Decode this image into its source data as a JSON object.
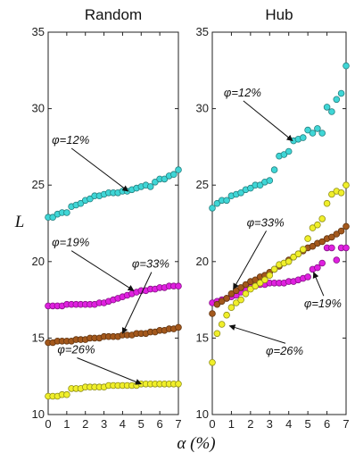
{
  "chart_data": [
    {
      "type": "scatter",
      "title": "Random",
      "xlabel": "α (%)",
      "ylabel": "L",
      "xlim": [
        0,
        7
      ],
      "ylim": [
        10,
        35
      ],
      "xticks": [
        "0",
        "1",
        "2",
        "3",
        "4",
        "5",
        "6",
        "7"
      ],
      "yticks": [
        "10",
        "15",
        "20",
        "25",
        "30",
        "35"
      ],
      "series": [
        {
          "name": "φ=12%",
          "color": "#3fd6d6",
          "x": [
            0.0,
            0.25,
            0.5,
            0.75,
            1.0,
            1.25,
            1.5,
            1.75,
            2.0,
            2.25,
            2.5,
            2.75,
            3.0,
            3.25,
            3.5,
            3.75,
            4.0,
            4.25,
            4.5,
            4.75,
            5.0,
            5.25,
            5.5,
            5.75,
            6.0,
            6.25,
            6.5,
            6.75,
            7.0
          ],
          "y": [
            22.9,
            22.9,
            23.1,
            23.2,
            23.2,
            23.6,
            23.7,
            23.8,
            24.0,
            24.1,
            24.3,
            24.3,
            24.4,
            24.5,
            24.5,
            24.5,
            24.6,
            24.6,
            24.7,
            24.8,
            24.9,
            25.0,
            24.9,
            25.2,
            25.4,
            25.4,
            25.6,
            25.7,
            26.0
          ]
        },
        {
          "name": "φ=19%",
          "color": "#e020e0",
          "x": [
            0.0,
            0.25,
            0.5,
            0.75,
            1.0,
            1.25,
            1.5,
            1.75,
            2.0,
            2.25,
            2.5,
            2.75,
            3.0,
            3.25,
            3.5,
            3.75,
            4.0,
            4.25,
            4.5,
            4.75,
            5.0,
            5.25,
            5.5,
            5.75,
            6.0,
            6.25,
            6.5,
            6.75,
            7.0
          ],
          "y": [
            17.1,
            17.1,
            17.1,
            17.1,
            17.2,
            17.2,
            17.2,
            17.2,
            17.2,
            17.2,
            17.2,
            17.3,
            17.3,
            17.4,
            17.5,
            17.6,
            17.7,
            17.8,
            17.9,
            18.0,
            18.1,
            18.1,
            18.2,
            18.2,
            18.3,
            18.3,
            18.4,
            18.4,
            18.4
          ]
        },
        {
          "name": "φ=33%",
          "color": "#a3581c",
          "x": [
            0.0,
            0.25,
            0.5,
            0.75,
            1.0,
            1.25,
            1.5,
            1.75,
            2.0,
            2.25,
            2.5,
            2.75,
            3.0,
            3.25,
            3.5,
            3.75,
            4.0,
            4.25,
            4.5,
            4.75,
            5.0,
            5.25,
            5.5,
            5.75,
            6.0,
            6.25,
            6.5,
            6.75,
            7.0
          ],
          "y": [
            14.7,
            14.7,
            14.8,
            14.8,
            14.8,
            14.8,
            14.9,
            14.9,
            14.9,
            15.0,
            15.0,
            15.0,
            15.1,
            15.1,
            15.1,
            15.1,
            15.2,
            15.2,
            15.2,
            15.3,
            15.3,
            15.3,
            15.4,
            15.4,
            15.5,
            15.5,
            15.6,
            15.6,
            15.7
          ]
        },
        {
          "name": "φ=26%",
          "color": "#f0ef2a",
          "x": [
            0.0,
            0.25,
            0.5,
            0.75,
            1.0,
            1.25,
            1.5,
            1.75,
            2.0,
            2.25,
            2.5,
            2.75,
            3.0,
            3.25,
            3.5,
            3.75,
            4.0,
            4.25,
            4.5,
            4.75,
            5.0,
            5.25,
            5.5,
            5.75,
            6.0,
            6.25,
            6.5,
            6.75,
            7.0
          ],
          "y": [
            11.2,
            11.2,
            11.2,
            11.3,
            11.3,
            11.7,
            11.7,
            11.7,
            11.8,
            11.8,
            11.8,
            11.8,
            11.8,
            11.9,
            11.9,
            11.9,
            11.9,
            11.9,
            11.9,
            11.9,
            12.0,
            12.0,
            12.0,
            12.0,
            12.0,
            12.0,
            12.0,
            12.0,
            12.0
          ]
        }
      ],
      "annotations": [
        {
          "text": "φ=12%",
          "x": 0.2,
          "y": 27.7,
          "arrow_to": [
            4.3,
            24.6
          ]
        },
        {
          "text": "φ=19%",
          "x": 0.2,
          "y": 21.0,
          "arrow_to": [
            4.6,
            18.1
          ]
        },
        {
          "text": "φ=33%",
          "x": 4.5,
          "y": 19.6,
          "arrow_to": [
            4.0,
            15.3
          ]
        },
        {
          "text": "φ=26%",
          "x": 0.5,
          "y": 14.0,
          "arrow_to": [
            5.0,
            12.0
          ]
        }
      ]
    },
    {
      "type": "scatter",
      "title": "Hub",
      "xlabel": "α (%)",
      "xlim": [
        0,
        7
      ],
      "ylim": [
        10,
        35
      ],
      "xticks": [
        "0",
        "1",
        "2",
        "3",
        "4",
        "5",
        "6",
        "7"
      ],
      "yticks": [
        "10",
        "15",
        "20",
        "25",
        "30",
        "35"
      ],
      "series": [
        {
          "name": "φ=12%",
          "color": "#3fd6d6",
          "x": [
            0.0,
            0.25,
            0.5,
            0.75,
            1.0,
            1.25,
            1.5,
            1.75,
            2.0,
            2.25,
            2.5,
            2.75,
            3.0,
            3.25,
            3.5,
            3.75,
            4.0,
            4.25,
            4.5,
            4.75,
            5.0,
            5.25,
            5.5,
            5.75,
            6.0,
            6.25,
            6.5,
            6.75,
            7.0
          ],
          "y": [
            23.5,
            23.8,
            24.0,
            24.0,
            24.3,
            24.4,
            24.5,
            24.7,
            24.8,
            25.0,
            25.0,
            25.2,
            25.3,
            26.0,
            26.9,
            27.0,
            27.2,
            27.9,
            28.0,
            28.1,
            28.6,
            28.4,
            28.7,
            28.4,
            30.1,
            29.8,
            30.6,
            31.0,
            32.8
          ]
        },
        {
          "name": "φ=19%",
          "color": "#e020e0",
          "x": [
            0.0,
            0.25,
            0.5,
            0.75,
            1.0,
            1.25,
            1.5,
            1.75,
            2.0,
            2.25,
            2.5,
            2.75,
            3.0,
            3.25,
            3.5,
            3.75,
            4.0,
            4.25,
            4.5,
            4.75,
            5.0,
            5.25,
            5.5,
            5.75,
            6.0,
            6.25,
            6.5,
            6.75,
            7.0
          ],
          "y": [
            17.3,
            17.4,
            17.5,
            17.6,
            17.7,
            17.8,
            18.0,
            18.2,
            18.3,
            18.4,
            18.5,
            18.5,
            18.6,
            18.6,
            18.6,
            18.6,
            18.7,
            18.7,
            18.8,
            18.9,
            19.0,
            19.5,
            19.6,
            19.9,
            20.9,
            20.9,
            20.1,
            20.9,
            20.9
          ]
        },
        {
          "name": "φ=33%",
          "color": "#a3581c",
          "x": [
            0.0,
            0.25,
            0.5,
            0.75,
            1.0,
            1.25,
            1.5,
            1.75,
            2.0,
            2.25,
            2.5,
            2.75,
            3.0,
            3.25,
            3.5,
            3.75,
            4.0,
            4.25,
            4.5,
            4.75,
            5.0,
            5.25,
            5.5,
            5.75,
            6.0,
            6.25,
            6.5,
            6.75,
            7.0
          ],
          "y": [
            16.6,
            17.2,
            17.4,
            17.6,
            17.9,
            18.1,
            18.3,
            18.5,
            18.7,
            18.8,
            19.0,
            19.1,
            19.3,
            19.5,
            19.7,
            19.9,
            20.1,
            20.3,
            20.5,
            20.7,
            20.9,
            21.0,
            21.2,
            21.3,
            21.5,
            21.6,
            21.8,
            22.0,
            22.3
          ]
        },
        {
          "name": "φ=26%",
          "color": "#f0ef2a",
          "x": [
            0.0,
            0.25,
            0.5,
            0.75,
            1.0,
            1.25,
            1.5,
            1.75,
            2.0,
            2.25,
            2.5,
            2.75,
            3.0,
            3.25,
            3.5,
            3.75,
            4.0,
            4.25,
            4.5,
            4.75,
            5.0,
            5.25,
            5.5,
            5.75,
            6.0,
            6.25,
            6.5,
            6.75,
            7.0
          ],
          "y": [
            13.4,
            15.3,
            15.9,
            16.5,
            17.0,
            17.3,
            17.5,
            17.9,
            18.2,
            18.4,
            18.6,
            18.8,
            19.1,
            19.5,
            19.8,
            19.9,
            20.0,
            20.3,
            20.5,
            20.8,
            21.5,
            22.2,
            22.4,
            22.8,
            23.8,
            24.4,
            24.6,
            24.5,
            25.0
          ]
        }
      ],
      "annotations": [
        {
          "text": "φ=12%",
          "x": 0.6,
          "y": 30.8,
          "arrow_to": [
            4.2,
            27.9
          ]
        },
        {
          "text": "φ=33%",
          "x": 1.8,
          "y": 22.3,
          "arrow_to": [
            1.1,
            18.2
          ]
        },
        {
          "text": "φ=19%",
          "x": 4.8,
          "y": 17.0,
          "arrow_to": [
            5.3,
            19.3
          ]
        },
        {
          "text": "φ=26%",
          "x": 2.8,
          "y": 13.9,
          "arrow_to": [
            0.9,
            15.8
          ]
        }
      ]
    }
  ]
}
